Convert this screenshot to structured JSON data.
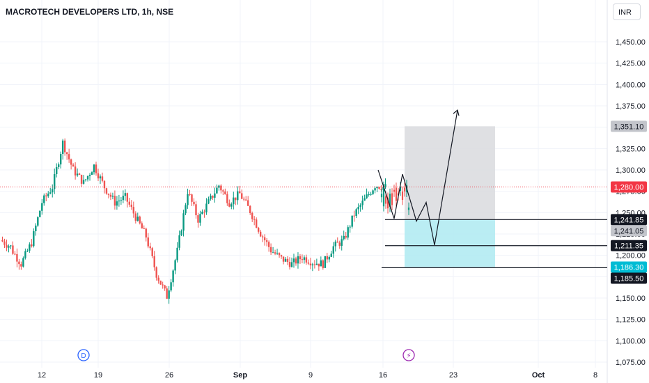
{
  "header": {
    "title": "MACROTECH DEVELOPERS LTD, 1h, NSE",
    "currency": "INR"
  },
  "markers": {
    "dividend": "D",
    "event": "⚡"
  },
  "colors": {
    "up": "#089981",
    "down": "#ef5350",
    "grid": "#f0f3fa",
    "current": "#f23645",
    "target_zone": "#d9dade",
    "stop_zone": "#b2ebf2",
    "stop_label": "#00bcd4"
  },
  "chart_data": {
    "type": "candlestick",
    "y_axis": {
      "min": 1075,
      "max": 1470,
      "ticks": [
        "1,450.00",
        "1,425.00",
        "1,400.00",
        "1,375.00",
        "1,350.00",
        "1,325.00",
        "1,300.00",
        "1,275.00",
        "1,250.00",
        "1,225.00",
        "1,200.00",
        "1,175.00",
        "1,150.00",
        "1,125.00",
        "1,100.00",
        "1,075.00"
      ],
      "tick_values": [
        1450,
        1425,
        1400,
        1375,
        1350,
        1325,
        1300,
        1275,
        1250,
        1225,
        1200,
        1175,
        1150,
        1125,
        1100,
        1075
      ]
    },
    "x_axis": {
      "labels": [
        "12",
        "19",
        "26",
        "Sep",
        "9",
        "16",
        "23",
        "Oct",
        "8"
      ]
    },
    "current_price": {
      "value": 1280.0,
      "label": "1,280.00"
    },
    "levels": [
      {
        "value": 1351.1,
        "label": "1,351.10",
        "style": "grey"
      },
      {
        "value": 1241.85,
        "label": "1,241.85",
        "style": "black"
      },
      {
        "value": 1241.05,
        "label": "1,241.05",
        "style": "grey"
      },
      {
        "value": 1211.35,
        "label": "1,211.35",
        "style": "black"
      },
      {
        "value": 1186.3,
        "label": "1,186.30",
        "style": "cyan"
      },
      {
        "value": 1185.5,
        "label": "1,185.50",
        "style": "black"
      }
    ],
    "projection_path": [
      1300,
      1243,
      1295,
      1240,
      1262,
      1212,
      1370
    ],
    "price_path": [
      [
        1218,
        1210
      ],
      [
        1208,
        1190
      ],
      [
        1190,
        1215
      ],
      [
        1215,
        1262
      ],
      [
        1262,
        1280
      ],
      [
        1280,
        1332
      ],
      [
        1332,
        1300
      ],
      [
        1300,
        1285
      ],
      [
        1285,
        1305
      ],
      [
        1305,
        1280
      ],
      [
        1280,
        1262
      ],
      [
        1262,
        1268
      ],
      [
        1268,
        1245
      ],
      [
        1245,
        1222
      ],
      [
        1222,
        1178
      ],
      [
        1178,
        1152
      ],
      [
        1152,
        1205
      ],
      [
        1205,
        1275
      ],
      [
        1275,
        1242
      ],
      [
        1242,
        1262
      ],
      [
        1262,
        1282
      ],
      [
        1282,
        1262
      ],
      [
        1262,
        1272
      ],
      [
        1272,
        1252
      ],
      [
        1252,
        1226
      ],
      [
        1226,
        1206
      ],
      [
        1206,
        1196
      ],
      [
        1196,
        1190
      ],
      [
        1190,
        1198
      ],
      [
        1198,
        1192
      ],
      [
        1192,
        1190
      ],
      [
        1190,
        1210
      ],
      [
        1210,
        1218
      ],
      [
        1218,
        1248
      ],
      [
        1248,
        1265
      ],
      [
        1265,
        1282
      ],
      [
        1282,
        1280
      ]
    ]
  }
}
